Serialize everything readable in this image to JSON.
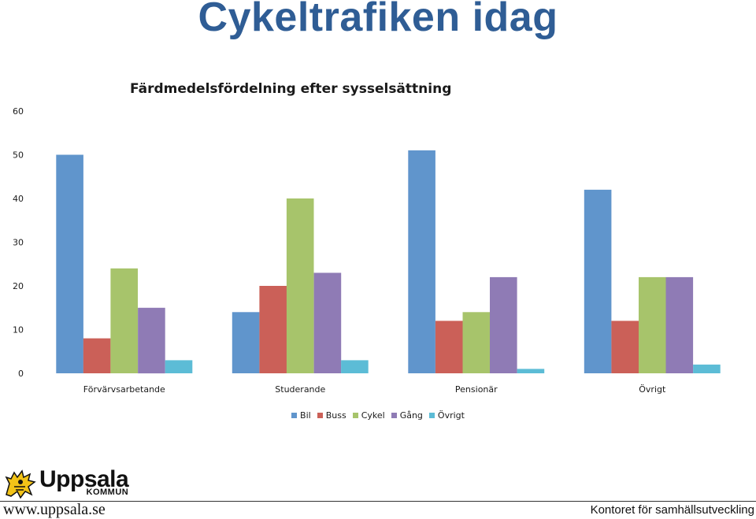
{
  "slide": {
    "title": "Cykeltrafiken idag",
    "footer_url": "www.uppsala.se",
    "footer_department": "Kontoret för samhällsutveckling",
    "logo": {
      "name": "Uppsala",
      "sub": "KOMMUN",
      "icon": "lion-crest-icon"
    }
  },
  "chart_data": {
    "type": "bar",
    "title": "Färdmedelsfördelning efter sysselsättning",
    "categories": [
      "Förvärvsarbetande",
      "Studerande",
      "Pensionär",
      "Övrigt"
    ],
    "series": [
      {
        "name": "Bil",
        "color": "#6095cc",
        "values": [
          50,
          14,
          51,
          42
        ]
      },
      {
        "name": "Buss",
        "color": "#cb6058",
        "values": [
          8,
          20,
          12,
          12
        ]
      },
      {
        "name": "Cykel",
        "color": "#a7c46b",
        "values": [
          24,
          40,
          14,
          22
        ]
      },
      {
        "name": "Gång",
        "color": "#8f7bb5",
        "values": [
          15,
          23,
          22,
          22
        ]
      },
      {
        "name": "Övrigt",
        "color": "#5cbcd6",
        "values": [
          3,
          3,
          1,
          2
        ]
      }
    ],
    "ylim": [
      0,
      60
    ],
    "yticks": [
      0,
      10,
      20,
      30,
      40,
      50,
      60
    ],
    "legend_position": "bottom",
    "grid": false
  }
}
